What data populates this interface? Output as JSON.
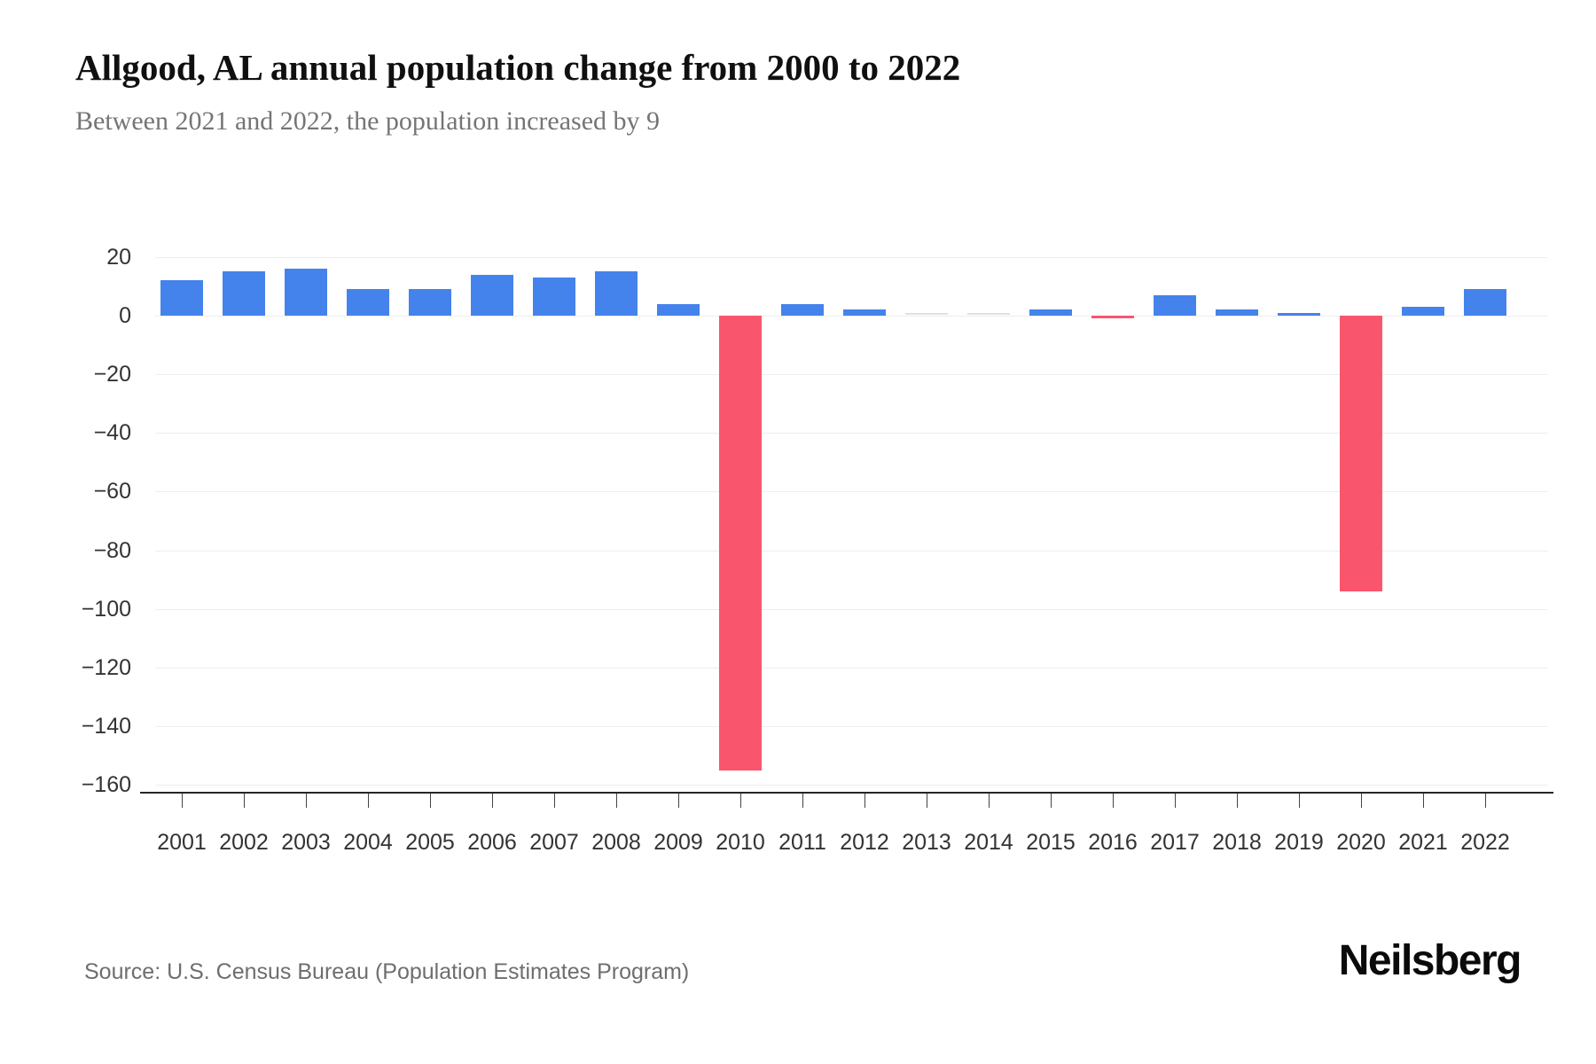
{
  "header": {
    "title": "Allgood, AL annual population change from 2000 to 2022",
    "subtitle": "Between 2021 and 2022, the population increased by 9"
  },
  "footer": {
    "source": "Source: U.S. Census Bureau (Population Estimates Program)",
    "brand": "Neilsberg"
  },
  "colors": {
    "positive_bar": "#4583ec",
    "negative_bar": "#f9566e",
    "zero_bar": "#e0e0e0",
    "gridline": "#ededed",
    "axis_line": "#262626",
    "tick_label": "#333333"
  },
  "chart_data": {
    "type": "bar",
    "title": "Allgood, AL annual population change from 2000 to 2022",
    "subtitle": "Between 2021 and 2022, the population increased by 9",
    "xlabel": "",
    "ylabel": "",
    "categories": [
      "2001",
      "2002",
      "2003",
      "2004",
      "2005",
      "2006",
      "2007",
      "2008",
      "2009",
      "2010",
      "2011",
      "2012",
      "2013",
      "2014",
      "2015",
      "2016",
      "2017",
      "2018",
      "2019",
      "2020",
      "2021",
      "2022"
    ],
    "values": [
      12,
      15,
      16,
      9,
      9,
      14,
      13,
      15,
      4,
      -155,
      4,
      2,
      0,
      0,
      2,
      -1,
      7,
      2,
      1,
      -94,
      3,
      9
    ],
    "ylim": [
      -165,
      25
    ],
    "ytick_values": [
      20,
      0,
      -20,
      -40,
      -60,
      -80,
      -100,
      -120,
      -140,
      -160
    ],
    "ytick_labels": [
      "20",
      "0",
      "−20",
      "−40",
      "−60",
      "−80",
      "−100",
      "−120",
      "−140",
      "−160"
    ],
    "grid": true,
    "legend": false,
    "bar_colors": {
      "positive": "#4583ec",
      "negative": "#f9566e",
      "zero": "#e0e0e0"
    }
  }
}
